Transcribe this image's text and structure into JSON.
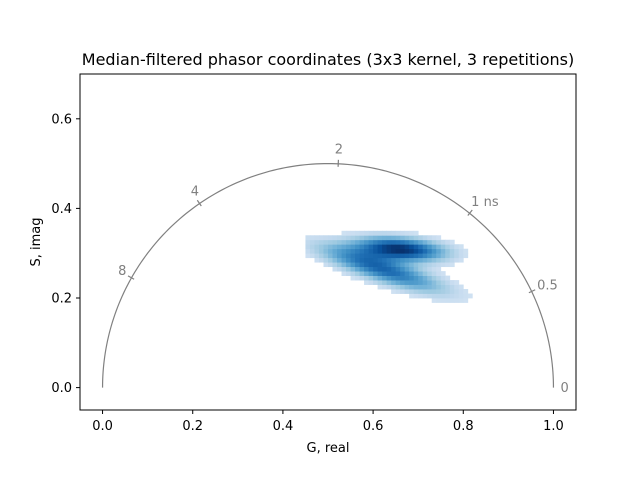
{
  "chart_data": {
    "type": "heatmap",
    "title": "Median-filtered phasor coordinates (3x3 kernel, 3 repetitions)",
    "xlabel": "G, real",
    "ylabel": "S, imag",
    "xlim": [
      -0.05,
      1.05
    ],
    "ylim": [
      -0.05,
      0.7
    ],
    "xticks": [
      {
        "value": 0.0,
        "label": "0.0"
      },
      {
        "value": 0.2,
        "label": "0.2"
      },
      {
        "value": 0.4,
        "label": "0.4"
      },
      {
        "value": 0.6,
        "label": "0.6"
      },
      {
        "value": 0.8,
        "label": "0.8"
      },
      {
        "value": 1.0,
        "label": "1.0"
      }
    ],
    "yticks": [
      {
        "value": 0.0,
        "label": "0.0"
      },
      {
        "value": 0.2,
        "label": "0.2"
      },
      {
        "value": 0.4,
        "label": "0.4"
      },
      {
        "value": 0.6,
        "label": "0.6"
      }
    ],
    "grid": false,
    "colormap": "Blues",
    "universal_circle": {
      "center": [
        0.5,
        0.0
      ],
      "radius": 0.5,
      "color": "#808080",
      "lifetime_ticks": [
        {
          "label": "0",
          "g": 1.0,
          "s": 0.0
        },
        {
          "label": "0.5",
          "g": 0.9515,
          "s": 0.2146
        },
        {
          "label": "1 ns",
          "g": 0.8143,
          "s": 0.3894
        },
        {
          "label": "2",
          "g": 0.5227,
          "s": 0.4995
        },
        {
          "label": "4",
          "g": 0.2152,
          "s": 0.4109
        },
        {
          "label": "8",
          "g": 0.0642,
          "s": 0.2451
        }
      ]
    },
    "clusters": [
      {
        "center": [
          0.66,
          0.31
        ],
        "sigma_major": 0.07,
        "sigma_minor": 0.018,
        "angle_deg": -5,
        "weight": 1.0
      },
      {
        "center": [
          0.62,
          0.265
        ],
        "sigma_major": 0.1,
        "sigma_minor": 0.02,
        "angle_deg": -18,
        "weight": 0.75
      }
    ],
    "bins": {
      "g_step": 0.01,
      "s_step": 0.01
    }
  }
}
